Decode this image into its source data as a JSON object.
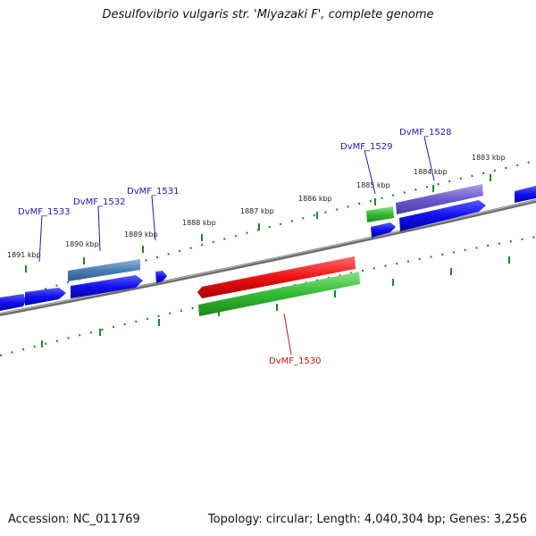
{
  "title": "Desulfovibrio vulgaris str. 'Miyazaki F', complete genome",
  "accession": "Accession: NC_011769",
  "summary": "Topology: circular; Length: 4,040,304 bp; Genes: 3,256",
  "colors": {
    "backbone": "#7a7a7a",
    "tick": "#1f8a1f",
    "gene_forward": "#1010ee",
    "gene_cds": "#33bb33",
    "gene_rrna": "#ee1111",
    "gene_steel": "#4a7fb5",
    "gene_purple": "#6a5acd",
    "label_blue": "#1a1ab8",
    "label_red": "#cc1111"
  },
  "scale_labels": [
    "1891 kbp",
    "1890 kbp",
    "1889 kbp",
    "1888 kbp",
    "1887 kbp",
    "1886 kbp",
    "1885 kbp",
    "1884 kbp",
    "1883 kbp"
  ],
  "gene_labels": [
    {
      "name": "DvMF_1533",
      "color": "label_blue"
    },
    {
      "name": "DvMF_1532",
      "color": "label_blue"
    },
    {
      "name": "DvMF_1531",
      "color": "label_blue"
    },
    {
      "name": "DvMF_1529",
      "color": "label_blue"
    },
    {
      "name": "DvMF_1528",
      "color": "label_blue"
    },
    {
      "name": "DvMF_1530",
      "color": "label_red"
    }
  ]
}
